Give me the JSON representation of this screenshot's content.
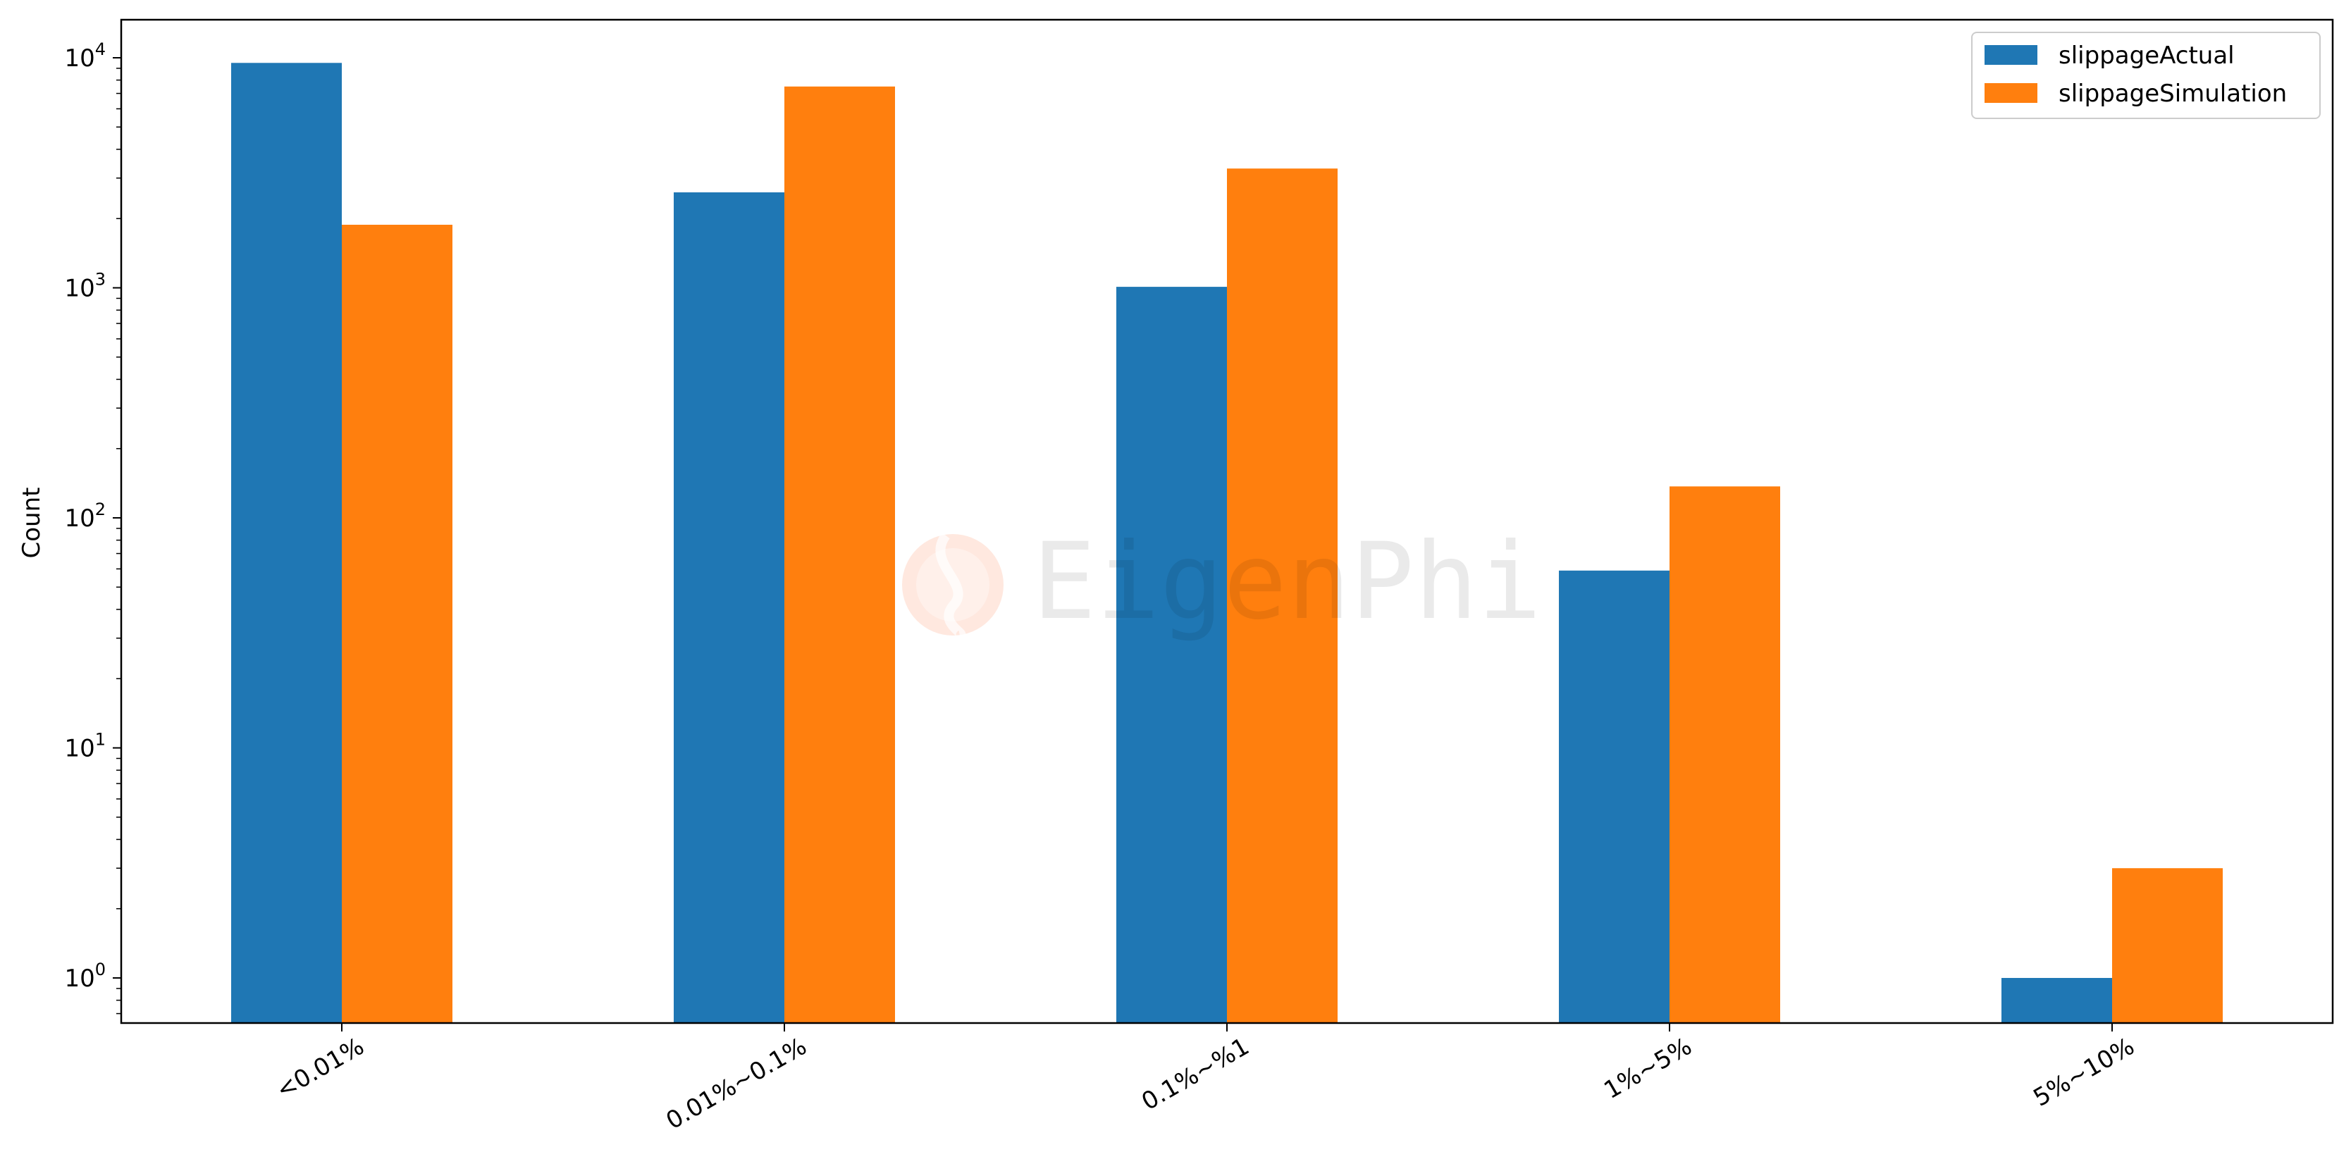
{
  "chart_data": {
    "type": "bar",
    "yscale": "log",
    "ylabel": "Count",
    "xlabel": "",
    "title": "",
    "ylim": [
      0.65,
      15000
    ],
    "categories": [
      "<0.01%",
      "0.01%~0.1%",
      "0.1%~%1",
      "1%~5%",
      "5%~10%"
    ],
    "y_tick_labels": [
      {
        "base": "10",
        "exp": "0",
        "value": 1
      },
      {
        "base": "10",
        "exp": "1",
        "value": 10
      },
      {
        "base": "10",
        "exp": "2",
        "value": 100
      },
      {
        "base": "10",
        "exp": "3",
        "value": 1000
      },
      {
        "base": "10",
        "exp": "4",
        "value": 10000
      }
    ],
    "series": [
      {
        "name": "slippageActual",
        "color": "#1f77b4",
        "values": [
          9500,
          2600,
          1010,
          59,
          1
        ]
      },
      {
        "name": "slippageSimulation",
        "color": "#ff7f0e",
        "values": [
          1880,
          7500,
          3300,
          137,
          3
        ]
      }
    ],
    "legend_position": "top-right",
    "grid": false
  },
  "watermark": {
    "text": "EigenPhi",
    "logo_icon": "eigenphi-logo-icon"
  }
}
